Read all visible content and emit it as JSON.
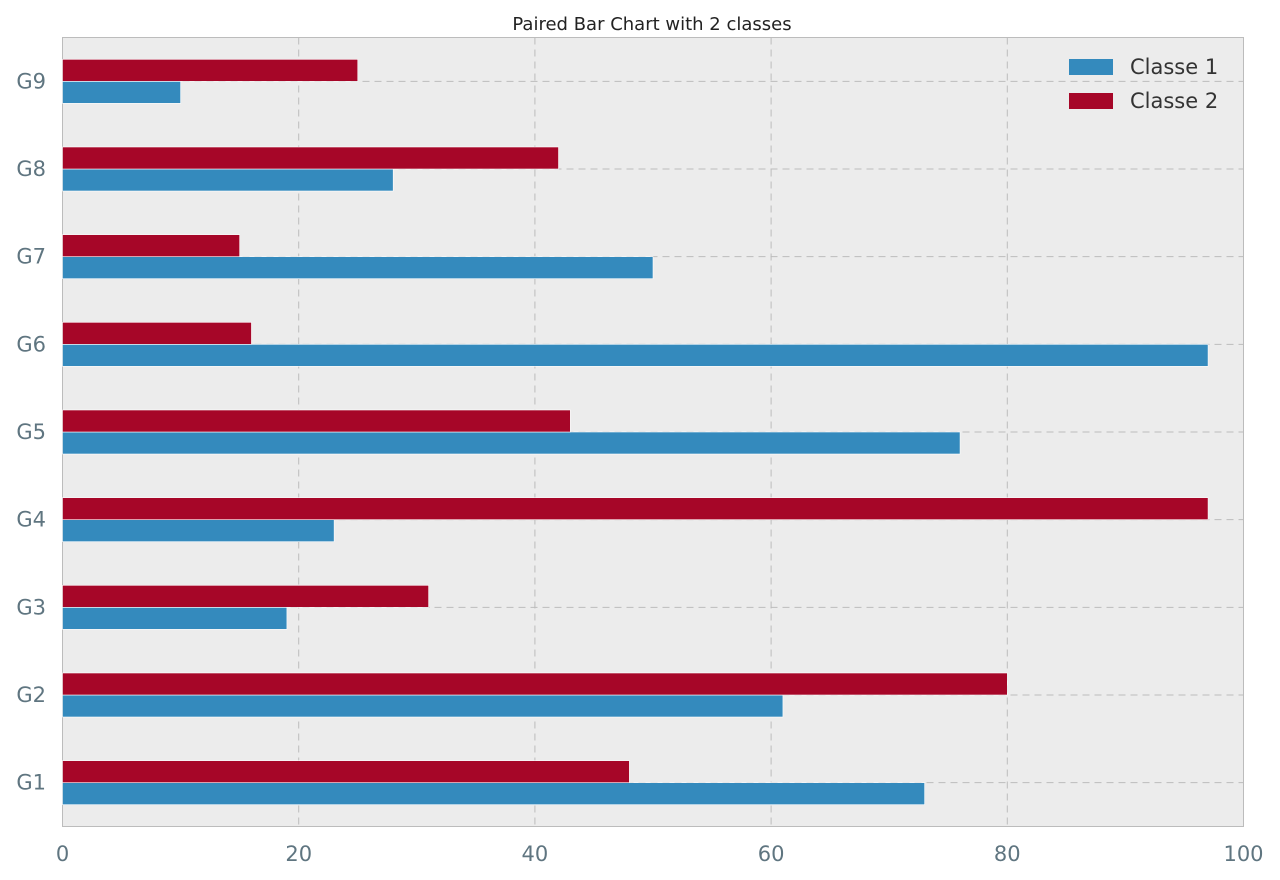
{
  "chart_data": {
    "type": "bar",
    "orientation": "horizontal",
    "title": "Paired Bar Chart with 2 classes",
    "xlabel": "",
    "ylabel": "",
    "categories": [
      "G1",
      "G2",
      "G3",
      "G4",
      "G5",
      "G6",
      "G7",
      "G8",
      "G9"
    ],
    "series": [
      {
        "name": "Classe 1",
        "color": "#348abd",
        "values": [
          73,
          61,
          19,
          23,
          76,
          97,
          50,
          28,
          10
        ]
      },
      {
        "name": "Classe 2",
        "color": "#a60628",
        "values": [
          48,
          80,
          31,
          97,
          43,
          16,
          15,
          42,
          25
        ]
      }
    ],
    "xlim": [
      0,
      100
    ],
    "xticks": [
      "0",
      "20",
      "40",
      "60",
      "80",
      "100"
    ],
    "grid": true,
    "legend_position": "top-right",
    "background_color": "#ececec"
  }
}
